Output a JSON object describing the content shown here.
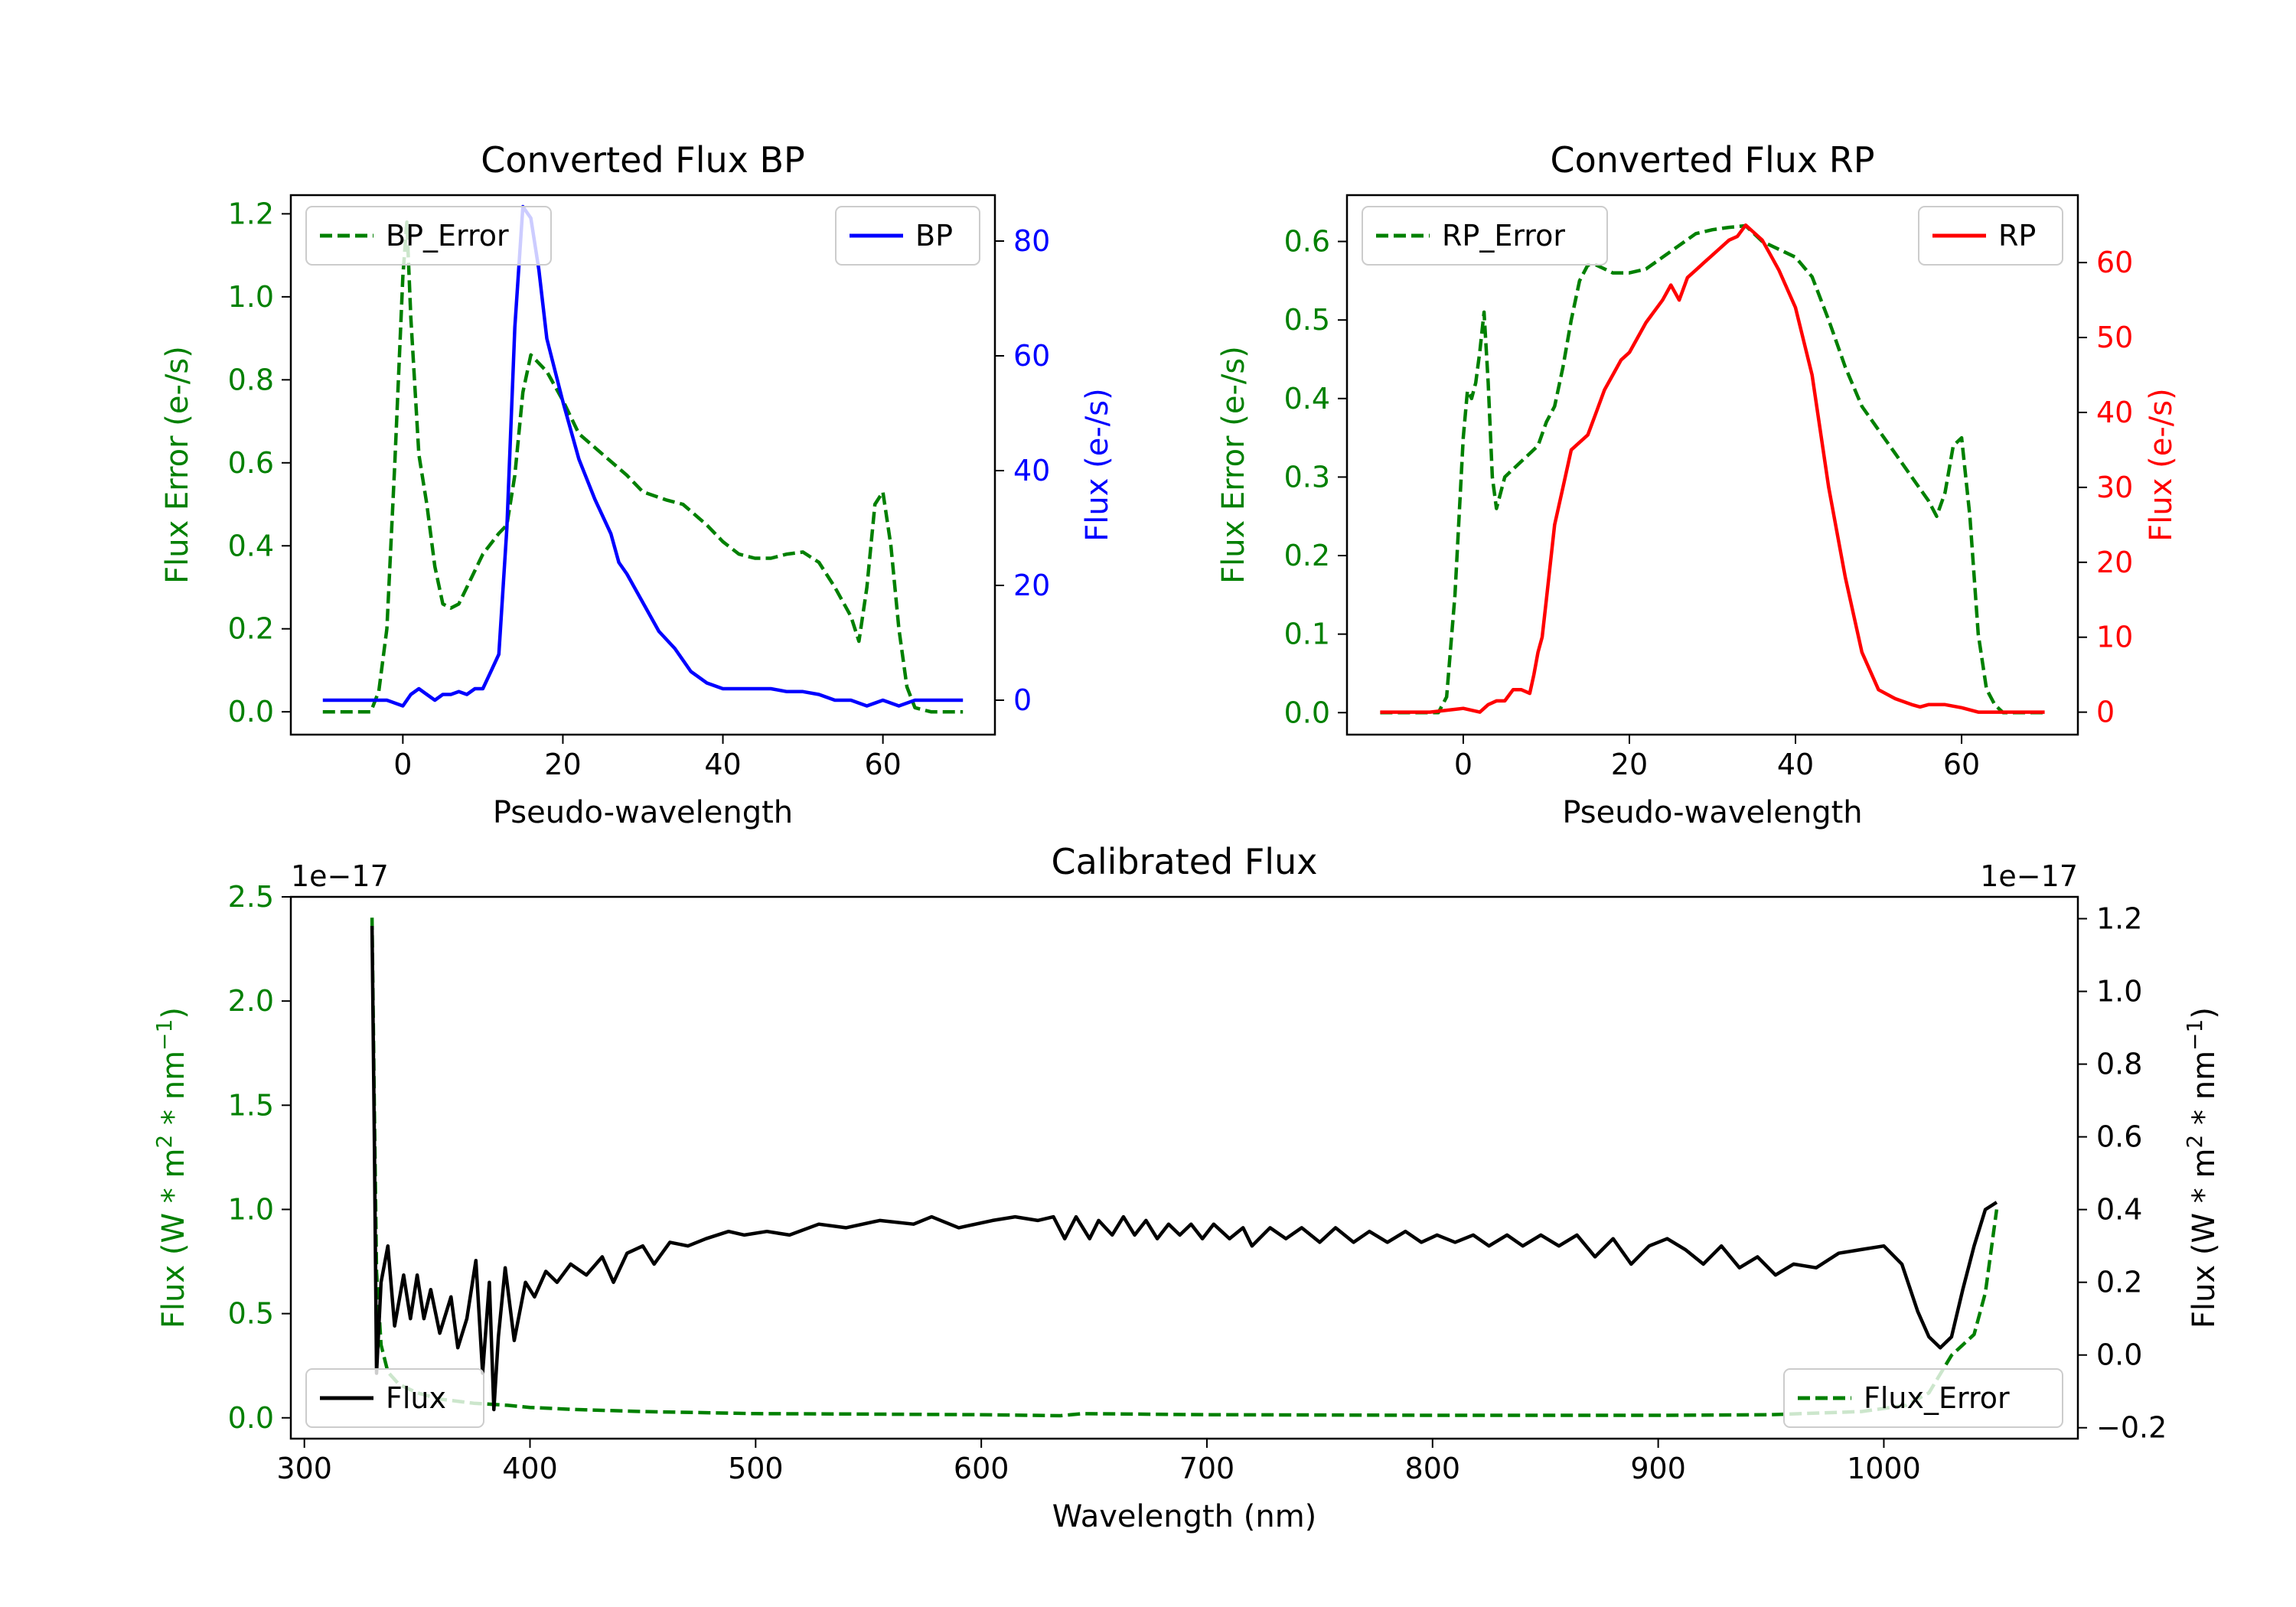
{
  "chart_data": [
    {
      "type": "line",
      "title": "Converted Flux BP",
      "xlabel": "Pseudo-wavelength",
      "ylabel_left": "Flux Error (e-/s)",
      "ylabel_right": "Flux (e-/s)",
      "xlim": [
        -14,
        74
      ],
      "ylim_left": [
        -0.055,
        1.245
      ],
      "ylim_right": [
        -6,
        88
      ],
      "xticks": [
        0,
        20,
        40,
        60
      ],
      "yticks_left": [
        0.0,
        0.2,
        0.4,
        0.6,
        0.8,
        1.0,
        1.2
      ],
      "yticks_right": [
        0,
        20,
        40,
        60,
        80
      ],
      "colors": {
        "left": "#008000",
        "right": "#0000ff"
      },
      "legend_left": {
        "label": "BP_Error",
        "placement": "top-left"
      },
      "legend_right": {
        "label": "BP",
        "placement": "top-right"
      },
      "series": [
        {
          "name": "BP_Error",
          "axis": "left",
          "style": "dashed",
          "color": "#008000",
          "x": [
            -10,
            -4,
            -3,
            -2,
            -1,
            0,
            0.5,
            1,
            2,
            3,
            4,
            5,
            6,
            7,
            8,
            10,
            12,
            13,
            14,
            15,
            16,
            18,
            20,
            22,
            25,
            28,
            30,
            33,
            35,
            38,
            40,
            42,
            44,
            46,
            48,
            50,
            52,
            54,
            56,
            57,
            58,
            59,
            60,
            61,
            62,
            63,
            64,
            66,
            70
          ],
          "values": [
            0.0,
            0.0,
            0.05,
            0.2,
            0.6,
            1.05,
            1.18,
            0.95,
            0.62,
            0.5,
            0.35,
            0.26,
            0.25,
            0.26,
            0.3,
            0.38,
            0.43,
            0.45,
            0.57,
            0.77,
            0.86,
            0.82,
            0.75,
            0.67,
            0.62,
            0.57,
            0.53,
            0.51,
            0.5,
            0.45,
            0.41,
            0.38,
            0.37,
            0.37,
            0.38,
            0.385,
            0.36,
            0.3,
            0.23,
            0.17,
            0.3,
            0.5,
            0.53,
            0.4,
            0.2,
            0.06,
            0.01,
            0.0,
            0.0
          ]
        },
        {
          "name": "BP",
          "axis": "right",
          "style": "solid",
          "color": "#0000ff",
          "x": [
            -10,
            -4,
            -2,
            0,
            1,
            2,
            3,
            4,
            5,
            6,
            7,
            8,
            9,
            10,
            11,
            12,
            13,
            14,
            15,
            16,
            17,
            18,
            20,
            22,
            24,
            26,
            27,
            28,
            30,
            32,
            34,
            36,
            38,
            40,
            42,
            44,
            46,
            48,
            50,
            52,
            54,
            56,
            58,
            60,
            62,
            64,
            66,
            68,
            70
          ],
          "values": [
            0,
            0,
            0,
            -1,
            1,
            2,
            1,
            0,
            1,
            1,
            1.5,
            1,
            2,
            2,
            5,
            8,
            30,
            65,
            86,
            84,
            75,
            63,
            52,
            42,
            35,
            29,
            24,
            22,
            17,
            12,
            9,
            5,
            3,
            2,
            2,
            2,
            2,
            1.5,
            1.5,
            1,
            0,
            0,
            -1,
            0,
            -1,
            0,
            0,
            0,
            0
          ]
        }
      ]
    },
    {
      "type": "line",
      "title": "Converted Flux RP",
      "xlabel": "Pseudo-wavelength",
      "ylabel_left": "Flux Error (e-/s)",
      "ylabel_right": "Flux (e-/s)",
      "xlim": [
        -14,
        74
      ],
      "ylim_left": [
        -0.028,
        0.659
      ],
      "ylim_right": [
        -3,
        69
      ],
      "xticks": [
        0,
        20,
        40,
        60
      ],
      "yticks_left": [
        0.0,
        0.1,
        0.2,
        0.3,
        0.4,
        0.5,
        0.6
      ],
      "yticks_right": [
        0,
        10,
        20,
        30,
        40,
        50,
        60
      ],
      "colors": {
        "left": "#008000",
        "right": "#ff0000"
      },
      "legend_left": {
        "label": "RP_Error",
        "placement": "top-left"
      },
      "legend_right": {
        "label": "RP",
        "placement": "top-right"
      },
      "series": [
        {
          "name": "RP_Error",
          "axis": "left",
          "style": "dashed",
          "color": "#008000",
          "x": [
            -10,
            -4,
            -3,
            -2,
            -1,
            0,
            0.5,
            1,
            1.5,
            2,
            2.5,
            3,
            3.5,
            4,
            5,
            6,
            7,
            8,
            9,
            10,
            11,
            12,
            13,
            14,
            15,
            16,
            18,
            20,
            22,
            24,
            26,
            28,
            30,
            32,
            34,
            36,
            38,
            40,
            42,
            44,
            46,
            48,
            50,
            52,
            54,
            55,
            56,
            57,
            58,
            59,
            60,
            61,
            62,
            63,
            64,
            65,
            66,
            70
          ],
          "values": [
            0.0,
            0.0,
            0.0,
            0.02,
            0.15,
            0.35,
            0.41,
            0.4,
            0.42,
            0.46,
            0.51,
            0.42,
            0.3,
            0.26,
            0.3,
            0.31,
            0.32,
            0.33,
            0.34,
            0.37,
            0.39,
            0.44,
            0.5,
            0.55,
            0.57,
            0.57,
            0.56,
            0.56,
            0.565,
            0.58,
            0.595,
            0.61,
            0.615,
            0.618,
            0.62,
            0.6,
            0.59,
            0.58,
            0.555,
            0.5,
            0.44,
            0.39,
            0.36,
            0.33,
            0.3,
            0.285,
            0.27,
            0.25,
            0.28,
            0.34,
            0.35,
            0.25,
            0.1,
            0.03,
            0.01,
            0.0,
            0.0,
            0.0
          ]
        },
        {
          "name": "RP",
          "axis": "right",
          "style": "solid",
          "color": "#ff0000",
          "x": [
            -10,
            -4,
            0,
            2,
            3,
            4,
            5,
            6,
            7,
            8,
            8.5,
            9,
            9.5,
            10,
            11,
            12,
            13,
            14,
            15,
            16,
            17,
            18,
            19,
            20,
            22,
            24,
            25,
            26,
            27,
            28,
            29,
            30,
            31,
            32,
            33,
            34,
            35,
            36,
            37,
            38,
            40,
            42,
            44,
            46,
            48,
            50,
            52,
            54,
            55,
            56,
            58,
            60,
            62,
            64,
            66,
            70
          ],
          "values": [
            0,
            0,
            0.5,
            0,
            1,
            1.5,
            1.5,
            3,
            3,
            2.5,
            5,
            8,
            10,
            15,
            25,
            30,
            35,
            36,
            37,
            40,
            43,
            45,
            47,
            48,
            52,
            55,
            57,
            55,
            58,
            59,
            60,
            61,
            62,
            63,
            63.5,
            65,
            64,
            63,
            61,
            59,
            54,
            45,
            30,
            18,
            8,
            3,
            1.8,
            1,
            0.7,
            1,
            1,
            0.6,
            0,
            0,
            0,
            0
          ]
        }
      ]
    },
    {
      "type": "line",
      "title": "Calibrated Flux",
      "xlabel": "Wavelength (nm)",
      "ylabel_left": "Flux (W * m² * nm⁻¹)",
      "ylabel_right": "Flux (W * m² * nm⁻¹)",
      "ylabel_left_parts": [
        "Flux (W * m",
        "2",
        " * nm",
        "−1",
        ")"
      ],
      "ylabel_right_parts": [
        "Flux (W * m",
        "2",
        " * nm",
        "−1",
        ")"
      ],
      "scale_left": "1e−17",
      "scale_right": "1e−17",
      "xlim": [
        294,
        1086
      ],
      "ylim_left": [
        -0.1,
        2.5
      ],
      "ylim_right": [
        -0.23,
        1.26
      ],
      "xticks": [
        300,
        400,
        500,
        600,
        700,
        800,
        900,
        1000
      ],
      "yticks_left": [
        "0.0",
        "0.5",
        "1.0",
        "1.5",
        "2.0",
        "2.5"
      ],
      "yticks_right": [
        "−0.2",
        "0.0",
        "0.2",
        "0.4",
        "0.6",
        "0.8",
        "1.0",
        "1.2"
      ],
      "colors": {
        "left": "#008000",
        "right": "#000000"
      },
      "legend_left": {
        "label": "Flux",
        "placement": "bottom-left"
      },
      "legend_right": {
        "label": "Flux_Error",
        "placement": "bottom-right"
      },
      "series": [
        {
          "name": "Flux_Error",
          "axis": "left",
          "style": "dashed",
          "color": "#008000",
          "x": [
            330,
            331,
            332,
            334,
            337,
            342,
            350,
            360,
            375,
            390,
            400,
            420,
            450,
            500,
            550,
            600,
            635,
            645,
            700,
            800,
            900,
            950,
            990,
            1010,
            1020,
            1030,
            1035,
            1040,
            1045,
            1050
          ],
          "values": [
            2.4,
            1.5,
            0.7,
            0.35,
            0.22,
            0.16,
            0.12,
            0.09,
            0.07,
            0.06,
            0.05,
            0.04,
            0.03,
            0.02,
            0.018,
            0.015,
            0.01,
            0.02,
            0.015,
            0.012,
            0.012,
            0.015,
            0.03,
            0.06,
            0.12,
            0.3,
            0.35,
            0.4,
            0.6,
            1.0
          ]
        },
        {
          "name": "Flux",
          "axis": "right",
          "style": "solid",
          "color": "#000000",
          "x": [
            330,
            331,
            332,
            334,
            337,
            340,
            344,
            347,
            350,
            353,
            356,
            360,
            365,
            368,
            372,
            376,
            379,
            382,
            384,
            386,
            389,
            393,
            398,
            402,
            407,
            412,
            418,
            425,
            432,
            437,
            443,
            450,
            455,
            462,
            470,
            478,
            488,
            495,
            505,
            515,
            528,
            540,
            555,
            570,
            578,
            590,
            605,
            615,
            625,
            632,
            637,
            642,
            648,
            652,
            658,
            663,
            668,
            673,
            678,
            683,
            688,
            693,
            698,
            703,
            710,
            716,
            720,
            728,
            735,
            742,
            750,
            757,
            765,
            772,
            780,
            788,
            795,
            802,
            810,
            818,
            825,
            833,
            840,
            848,
            856,
            864,
            872,
            880,
            888,
            896,
            904,
            912,
            920,
            928,
            936,
            944,
            952,
            960,
            970,
            980,
            990,
            1000,
            1008,
            1015,
            1020,
            1025,
            1030,
            1035,
            1040,
            1045,
            1050
          ],
          "values": [
            1.18,
            0.6,
            -0.05,
            0.2,
            0.3,
            0.08,
            0.22,
            0.1,
            0.22,
            0.1,
            0.18,
            0.06,
            0.16,
            0.02,
            0.1,
            0.26,
            -0.05,
            0.2,
            -0.15,
            0.05,
            0.24,
            0.04,
            0.2,
            0.16,
            0.23,
            0.2,
            0.25,
            0.22,
            0.27,
            0.2,
            0.28,
            0.3,
            0.25,
            0.31,
            0.3,
            0.32,
            0.34,
            0.33,
            0.34,
            0.33,
            0.36,
            0.35,
            0.37,
            0.36,
            0.38,
            0.35,
            0.37,
            0.38,
            0.37,
            0.38,
            0.32,
            0.38,
            0.32,
            0.37,
            0.33,
            0.38,
            0.33,
            0.37,
            0.32,
            0.36,
            0.33,
            0.36,
            0.32,
            0.36,
            0.32,
            0.35,
            0.3,
            0.35,
            0.32,
            0.35,
            0.31,
            0.35,
            0.31,
            0.34,
            0.31,
            0.34,
            0.31,
            0.33,
            0.31,
            0.33,
            0.3,
            0.33,
            0.3,
            0.33,
            0.3,
            0.33,
            0.27,
            0.32,
            0.25,
            0.3,
            0.32,
            0.29,
            0.25,
            0.3,
            0.24,
            0.27,
            0.22,
            0.25,
            0.24,
            0.28,
            0.29,
            0.3,
            0.25,
            0.12,
            0.05,
            0.02,
            0.05,
            0.18,
            0.3,
            0.4,
            0.42
          ]
        }
      ]
    }
  ]
}
